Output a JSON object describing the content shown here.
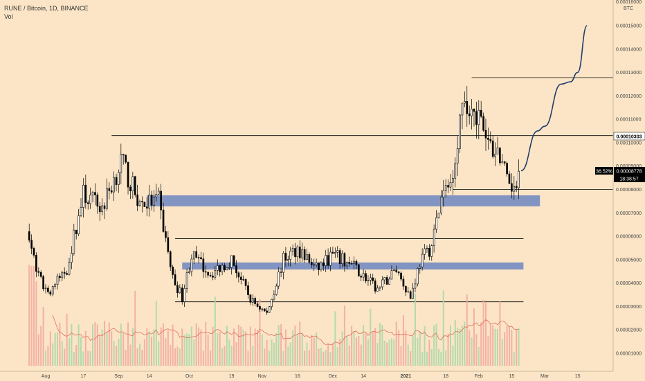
{
  "header": {
    "symbol_line": "RUNE / Bitcoin, 1D, BINANCE",
    "vol_label": "Vol"
  },
  "price_axis": {
    "currency": "BTC",
    "top_partial": "0.00016000",
    "ticks": [
      "0.00015000",
      "0.00014000",
      "0.00013000",
      "0.00012000",
      "0.00011000",
      "0.00010000",
      "0.00009000",
      "0.00008000",
      "0.00007000",
      "0.00006000",
      "0.00005000",
      "0.00004000",
      "0.00003000",
      "0.00002000",
      "0.00001000"
    ]
  },
  "flags": {
    "resistance_price": "0.00010303",
    "change_pct": "36.52%",
    "last_price": "0.00008778",
    "countdown": "18:38:57"
  },
  "colors": {
    "background": "#fbe5c6",
    "zone": "#7b8fc1",
    "projection": "#1f3c6e",
    "candle": "#000000",
    "volume_up": "#a8d8a8",
    "volume_down": "#f2a8a0",
    "volume_ma": "#e26d5a"
  },
  "chart_data": {
    "type": "candlestick",
    "symbol": "RUNE / Bitcoin",
    "interval": "1D",
    "exchange": "BINANCE",
    "y_unit": "BTC",
    "ylim": [
      0,
      0.00016
    ],
    "x_ticks": [
      "Aug",
      "17",
      "Sep",
      "14",
      "Oct",
      "19",
      "Nov",
      "16",
      "Dec",
      "14",
      "2021",
      "18",
      "Feb",
      "15",
      "Mar",
      "15"
    ],
    "price_path_keypoints": [
      {
        "date": "Jul 25",
        "price": 6.2e-05
      },
      {
        "date": "Jul 28",
        "price": 4.4e-05
      },
      {
        "date": "Aug 2",
        "price": 3.6e-05
      },
      {
        "date": "Aug 10",
        "price": 4.6e-05
      },
      {
        "date": "Aug 17",
        "price": 7.8e-05
      },
      {
        "date": "Aug 25",
        "price": 7.2e-05
      },
      {
        "date": "Sep 2",
        "price": 9.2e-05
      },
      {
        "date": "Sep 10",
        "price": 7.4e-05
      },
      {
        "date": "Sep 18",
        "price": 7.5e-05
      },
      {
        "date": "Sep 24",
        "price": 4.2e-05
      },
      {
        "date": "Sep 28",
        "price": 3.4e-05
      },
      {
        "date": "Oct 2",
        "price": 5.2e-05
      },
      {
        "date": "Oct 10",
        "price": 4.4e-05
      },
      {
        "date": "Oct 19",
        "price": 5e-05
      },
      {
        "date": "Oct 27",
        "price": 3.3e-05
      },
      {
        "date": "Nov 3",
        "price": 2.7e-05
      },
      {
        "date": "Nov 10",
        "price": 5e-05
      },
      {
        "date": "Nov 16",
        "price": 5.5e-05
      },
      {
        "date": "Nov 24",
        "price": 4.6e-05
      },
      {
        "date": "Dec 1",
        "price": 5.2e-05
      },
      {
        "date": "Dec 10",
        "price": 4.7e-05
      },
      {
        "date": "Dec 20",
        "price": 3.7e-05
      },
      {
        "date": "Dec 28",
        "price": 4.6e-05
      },
      {
        "date": "Jan 3",
        "price": 3.4e-05
      },
      {
        "date": "Jan 7",
        "price": 4.9e-05
      },
      {
        "date": "Jan 12",
        "price": 5.6e-05
      },
      {
        "date": "Jan 16",
        "price": 7.6e-05
      },
      {
        "date": "Jan 20",
        "price": 8.3e-05
      },
      {
        "date": "Jan 24",
        "price": 0.00011
      },
      {
        "date": "Jan 30",
        "price": 0.000117
      },
      {
        "date": "Feb 4",
        "price": 0.0001
      },
      {
        "date": "Feb 10",
        "price": 9.5e-05
      },
      {
        "date": "Feb 14",
        "price": 7.8e-05
      },
      {
        "date": "Feb 18",
        "price": 8.78e-05
      }
    ],
    "horizontal_levels": [
      {
        "price": 0.0001278,
        "from": "Jan 29",
        "to": "end"
      },
      {
        "price": 0.00010303,
        "from": "Aug 29",
        "to": "end"
      },
      {
        "price": 8e-05,
        "from": "Jan 21",
        "to": "end"
      },
      {
        "price": 5.9e-05,
        "from": "Sep 25",
        "to": "Feb 20"
      },
      {
        "price": 3.2e-05,
        "from": "Sep 25",
        "to": "Feb 20"
      }
    ],
    "zones": [
      {
        "low": 7.28e-05,
        "high": 7.75e-05,
        "from": "Sep 13",
        "to": "Feb 27"
      },
      {
        "low": 4.58e-05,
        "high": 4.88e-05,
        "from": "Sep 28",
        "to": "Feb 20"
      }
    ],
    "projection_path": [
      {
        "date": "Feb 19",
        "price": 8.8e-05
      },
      {
        "date": "Feb 26",
        "price": 0.000105
      },
      {
        "date": "Mar 1",
        "price": 0.000107
      },
      {
        "date": "Mar 8",
        "price": 0.000125
      },
      {
        "date": "Mar 12",
        "price": 0.000126
      },
      {
        "date": "Mar 15",
        "price": 0.00013
      },
      {
        "date": "Mar 19",
        "price": 0.00015
      }
    ],
    "volume_ma": true
  }
}
